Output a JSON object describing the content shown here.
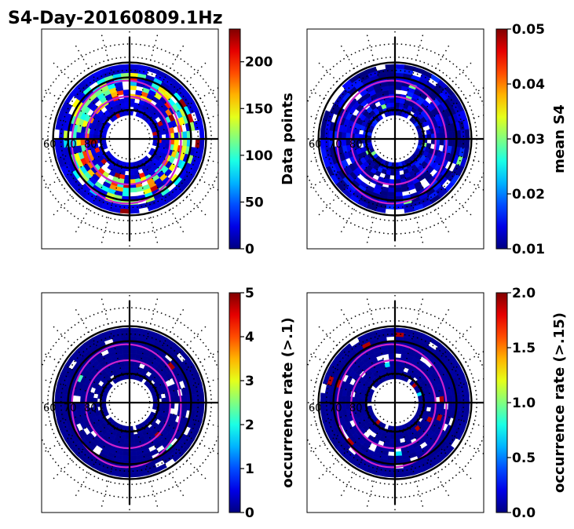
{
  "title": "S4-Day-20160809.1Hz",
  "colormap": "jet",
  "colors": {
    "circle": "#000000",
    "contour": "#cc22cc",
    "background": "#ffffff"
  },
  "chart_data": [
    {
      "type": "heatmap",
      "projection": "polar",
      "panel": "top-left",
      "colorbar_label": "Data points",
      "clim": [
        0,
        235
      ],
      "colorbar_ticks": [
        "0",
        "50",
        "100",
        "150",
        "200"
      ],
      "colorbar_tick_values": [
        0,
        50,
        100,
        150,
        200
      ],
      "longitude_labels": [
        "60",
        "70",
        "80"
      ],
      "coverage": {
        "inner": 0.27,
        "outer": 0.85
      },
      "value_distribution": {
        "base": 20,
        "ring_values": [
          {
            "at": 0.55,
            "value": 180
          },
          {
            "at": 0.7,
            "value": 140
          }
        ],
        "hot_spots": [
          230,
          220,
          200
        ]
      }
    },
    {
      "type": "heatmap",
      "projection": "polar",
      "panel": "top-right",
      "colorbar_label": "mean S4",
      "clim": [
        0.01,
        0.05
      ],
      "colorbar_ticks": [
        "0.01",
        "0.02",
        "0.03",
        "0.04",
        "0.05"
      ],
      "colorbar_tick_values": [
        0.01,
        0.02,
        0.03,
        0.04,
        0.05
      ],
      "longitude_labels": [
        "60",
        "70",
        "80"
      ],
      "coverage": {
        "inner": 0.27,
        "outer": 0.85
      },
      "value_distribution": {
        "base": 0.012,
        "hot_spots": [
          0.03
        ]
      }
    },
    {
      "type": "heatmap",
      "projection": "polar",
      "panel": "bottom-left",
      "colorbar_label": "occurrence rate (>.1)",
      "clim": [
        0,
        5
      ],
      "colorbar_ticks": [
        "0",
        "1",
        "2",
        "3",
        "4",
        "5"
      ],
      "colorbar_tick_values": [
        0,
        1,
        2,
        3,
        4,
        5
      ],
      "longitude_labels": [
        "60",
        "70",
        "80"
      ],
      "coverage": {
        "inner": 0.27,
        "outer": 0.85
      },
      "value_distribution": {
        "base": 0.1,
        "hot_spots": [
          2.2,
          4.8
        ]
      }
    },
    {
      "type": "heatmap",
      "projection": "polar",
      "panel": "bottom-right",
      "colorbar_label": "occurrence rate (>.15)",
      "clim": [
        0.0,
        2.0
      ],
      "colorbar_ticks": [
        "0.0",
        "0.5",
        "1.0",
        "1.5",
        "2.0"
      ],
      "colorbar_tick_values": [
        0.0,
        0.5,
        1.0,
        1.5,
        2.0
      ],
      "longitude_labels": [
        "60",
        "70",
        "80"
      ],
      "coverage": {
        "inner": 0.27,
        "outer": 0.85
      },
      "value_distribution": {
        "base": 0.05,
        "hot_spots": [
          0.7,
          1.9
        ]
      }
    }
  ]
}
